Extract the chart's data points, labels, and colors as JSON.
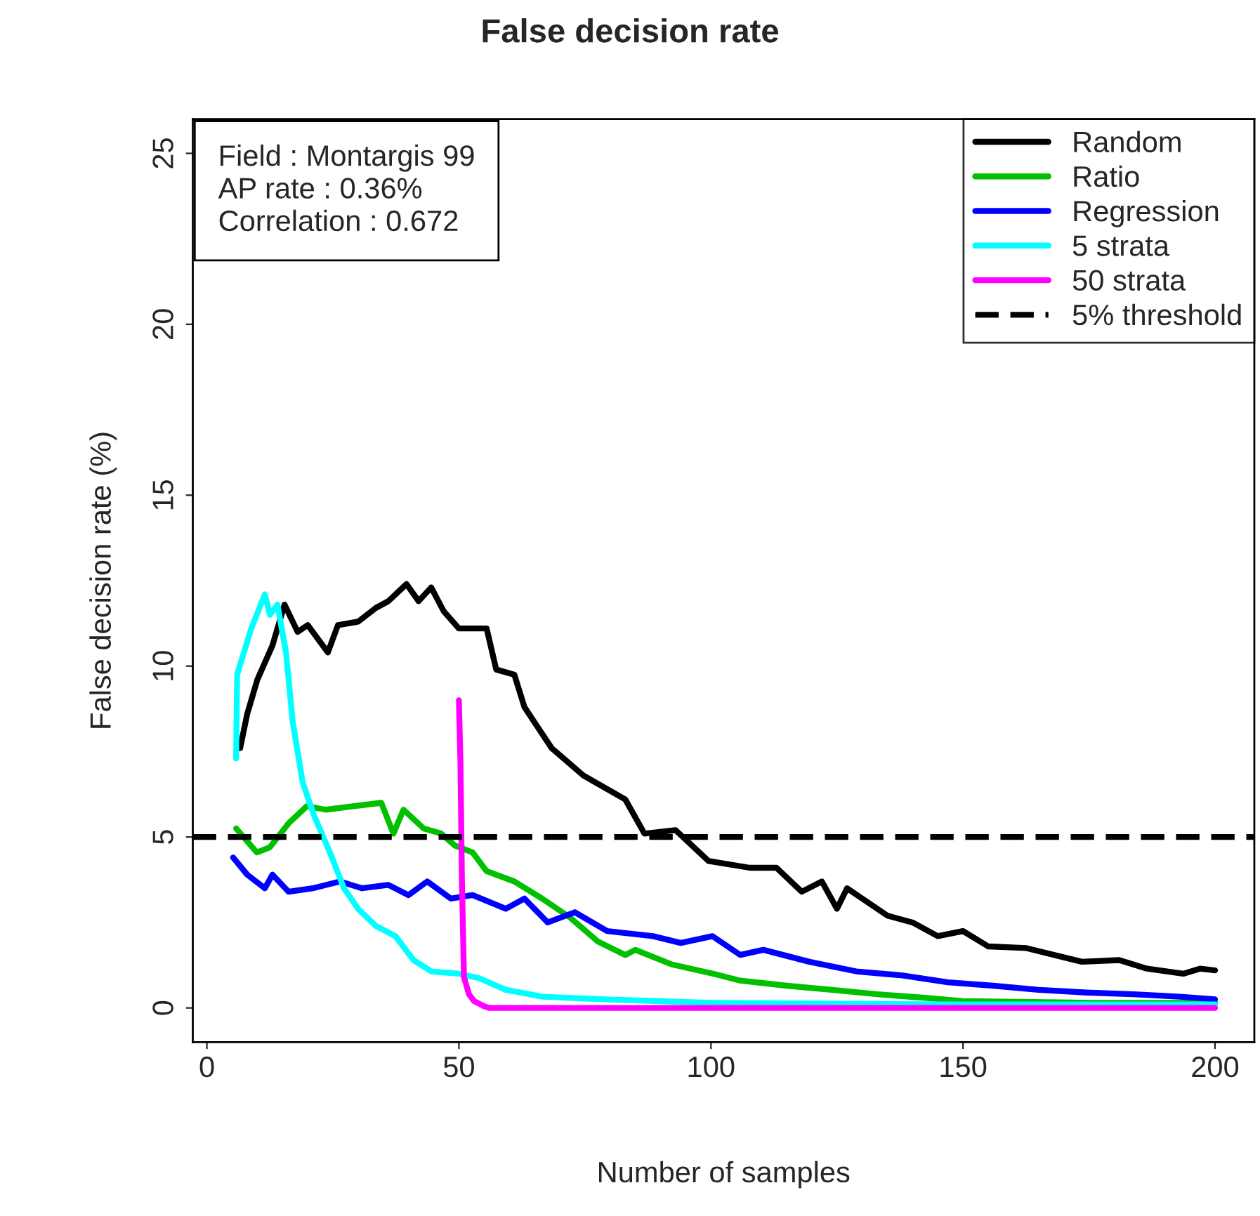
{
  "chart_data": {
    "type": "line",
    "title": "False decision rate",
    "xlabel": "Number of samples",
    "ylabel": "False decision rate (%)",
    "annotations": [
      "Field : Montargis 99",
      "AP rate : 0.36%",
      "Correlation : 0.672"
    ],
    "xlim": [
      -2.8,
      207.8
    ],
    "ylim": [
      -1,
      26
    ],
    "xticks": [
      0,
      50,
      100,
      150,
      200
    ],
    "yticks": [
      0,
      5,
      10,
      15,
      20,
      25
    ],
    "grid": false,
    "legend": "top right",
    "line_style": "solid",
    "marker": "none",
    "series": [
      {
        "name": "Random",
        "color": "#000000",
        "x": [
          6.6,
          8,
          10,
          13,
          15.4,
          18,
          20,
          24,
          26,
          30,
          33.5,
          36,
          39.6,
          42,
          44.5,
          47,
          50,
          55.5,
          57.4,
          61,
          63,
          68.4,
          74.7,
          83,
          86.8,
          93,
          99.5,
          107.7,
          113,
          118,
          122,
          125,
          127,
          135,
          140,
          145,
          150,
          155,
          162.6,
          173.6,
          181,
          186.5,
          193.7,
          197,
          200
        ],
        "values": [
          7.6,
          8.6,
          9.6,
          10.6,
          11.8,
          11.0,
          11.2,
          10.4,
          11.2,
          11.3,
          11.7,
          11.9,
          12.4,
          11.9,
          12.3,
          11.6,
          11.1,
          11.1,
          9.9,
          9.75,
          8.8,
          7.6,
          6.8,
          6.1,
          5.1,
          5.2,
          4.3,
          4.1,
          4.1,
          3.4,
          3.7,
          2.9,
          3.5,
          2.7,
          2.5,
          2.1,
          2.25,
          1.8,
          1.75,
          1.35,
          1.4,
          1.15,
          1.0,
          1.15,
          1.1
        ]
      },
      {
        "name": "Ratio",
        "color": "#00c000",
        "x": [
          5.8,
          9.9,
          12.5,
          16.2,
          19.8,
          23.6,
          29,
          34.6,
          37,
          39,
          43,
          46.5,
          49.2,
          52.7,
          55.5,
          61,
          66.5,
          72,
          77.5,
          83,
          85,
          92.3,
          100.5,
          105.8,
          115,
          124,
          133,
          142,
          150,
          175,
          200
        ],
        "values": [
          5.25,
          4.55,
          4.7,
          5.4,
          5.9,
          5.8,
          5.9,
          6.0,
          5.1,
          5.8,
          5.25,
          5.1,
          4.75,
          4.55,
          4.0,
          3.7,
          3.2,
          2.65,
          1.95,
          1.55,
          1.7,
          1.27,
          1.0,
          0.8,
          0.65,
          0.53,
          0.4,
          0.3,
          0.2,
          0.15,
          0.15
        ]
      },
      {
        "name": "Regression",
        "color": "#0000ff",
        "x": [
          5.2,
          8,
          11.5,
          13,
          16.2,
          21,
          26.4,
          30.8,
          36,
          40,
          43.7,
          48.4,
          52.7,
          59.3,
          63,
          67.6,
          73,
          79.4,
          88.5,
          94,
          100.3,
          105.8,
          110.4,
          119.5,
          128.8,
          138,
          147,
          156,
          165,
          174.5,
          183.8,
          193,
          200
        ],
        "values": [
          4.4,
          3.9,
          3.5,
          3.9,
          3.4,
          3.5,
          3.7,
          3.5,
          3.6,
          3.3,
          3.7,
          3.2,
          3.3,
          2.9,
          3.2,
          2.5,
          2.8,
          2.25,
          2.1,
          1.9,
          2.1,
          1.55,
          1.7,
          1.35,
          1.07,
          0.95,
          0.75,
          0.65,
          0.53,
          0.45,
          0.4,
          0.33,
          0.25
        ]
      },
      {
        "name": "5 strata",
        "color": "#00ffff",
        "x": [
          5.8,
          6,
          8.8,
          11.5,
          12.5,
          14,
          15.7,
          17,
          19,
          21.2,
          24.4,
          27.2,
          30,
          33.5,
          37.4,
          41,
          44.5,
          50,
          54,
          59.3,
          66.5,
          79,
          100,
          150,
          200
        ],
        "values": [
          7.3,
          9.75,
          11.1,
          12.1,
          11.5,
          11.8,
          10.4,
          8.4,
          6.6,
          5.65,
          4.55,
          3.5,
          2.9,
          2.4,
          2.1,
          1.4,
          1.07,
          1.0,
          0.87,
          0.53,
          0.33,
          0.25,
          0.15,
          0.1,
          0.1
        ]
      },
      {
        "name": "50 strata",
        "color": "#ff00ff",
        "x": [
          50,
          50.3,
          50.6,
          51,
          52,
          53,
          55,
          56,
          200
        ],
        "values": [
          9.0,
          7.2,
          3.7,
          0.9,
          0.4,
          0.2,
          0.05,
          0,
          0
        ]
      }
    ],
    "ref_lines": [
      {
        "axis": "y",
        "value": 5,
        "label": "5% threshold",
        "color": "#000000",
        "line_style": "dashed"
      }
    ]
  }
}
